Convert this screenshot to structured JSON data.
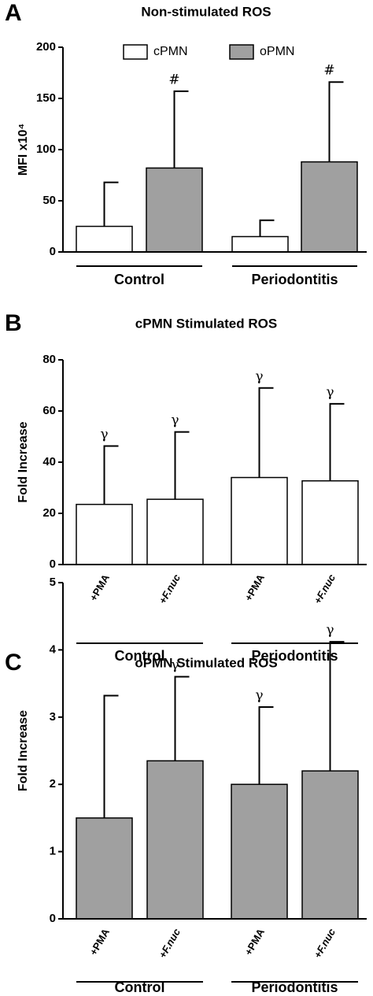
{
  "chart_data": [
    {
      "type": "grouped-bar",
      "panel": "A",
      "title": "Non-stimulated ROS",
      "y_label": "MFI x10⁴",
      "categories": [
        "Control",
        "Periodontitis"
      ],
      "series": [
        {
          "name": "cPMN",
          "color": "#ffffff",
          "values": [
            25,
            15
          ],
          "errors": [
            43,
            16
          ],
          "annotations": [
            null,
            null
          ]
        },
        {
          "name": "oPMN",
          "color": "#a0a0a0",
          "values": [
            82,
            88
          ],
          "errors": [
            75,
            78
          ],
          "annotations": [
            "#",
            "#"
          ]
        }
      ],
      "ylim": [
        0,
        200
      ],
      "yticks": [
        0,
        50,
        100,
        150,
        200
      ],
      "legend": "top"
    },
    {
      "type": "bar",
      "panel": "B",
      "title": "cPMN Stimulated  ROS",
      "y_label": "Fold Increase",
      "groups": [
        {
          "name": "Control",
          "categories": [
            "+PMA",
            "+F.nuc"
          ]
        },
        {
          "name": "Periodontitis",
          "categories": [
            "+PMA",
            "+F.nuc"
          ]
        }
      ],
      "values": [
        23.5,
        25.5,
        34,
        32.7
      ],
      "errors": [
        22.8,
        26.3,
        35,
        30.1
      ],
      "annotations": [
        "γ",
        "γ",
        "γ",
        "γ"
      ],
      "color": "#ffffff",
      "ylim": [
        0,
        80
      ],
      "yticks": [
        0,
        20,
        40,
        60,
        80
      ]
    },
    {
      "type": "bar",
      "panel": "C",
      "title": "oPMN Stimulated  ROS",
      "y_label": "Fold Increase",
      "groups": [
        {
          "name": "Control",
          "categories": [
            "+PMA",
            "+F.nuc"
          ]
        },
        {
          "name": "Periodontitis",
          "categories": [
            "+PMA",
            "+F.nuc"
          ]
        }
      ],
      "values": [
        1.5,
        2.35,
        2.0,
        2.2
      ],
      "errors": [
        1.82,
        1.25,
        1.15,
        1.92
      ],
      "annotations": [
        null,
        "γ",
        "γ",
        "γ"
      ],
      "color": "#a0a0a0",
      "ylim": [
        0,
        5
      ],
      "yticks": [
        0,
        1,
        2,
        3,
        4,
        5
      ]
    }
  ]
}
